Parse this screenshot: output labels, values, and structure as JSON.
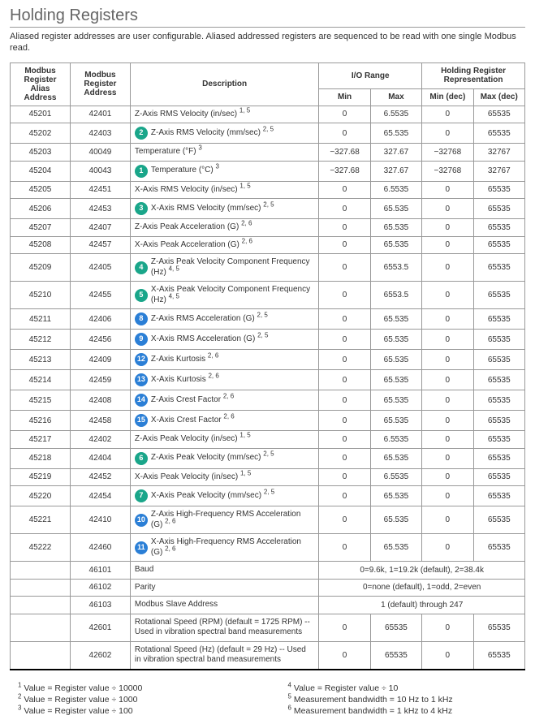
{
  "title": "Holding Registers",
  "intro": "Aliased register addresses are user configurable. Aliased addressed registers are sequenced to be read with one single Modbus read.",
  "headers": {
    "alias": "Modbus Register Alias Address",
    "addr": "Modbus Register Address",
    "desc": "Description",
    "io": "I/O Range",
    "rep": "Holding Register Representation",
    "min": "Min",
    "max": "Max",
    "mindec": "Min (dec)",
    "maxdec": "Max (dec)"
  },
  "rows": [
    {
      "alias": "45201",
      "addr": "42401",
      "badge": null,
      "badgeColor": null,
      "desc": "Z-Axis RMS Velocity (in/sec)",
      "sup": "1, 5",
      "min": "0",
      "max": "6.5535",
      "mind": "0",
      "maxd": "65535",
      "heavy": false
    },
    {
      "alias": "45202",
      "addr": "42403",
      "badge": "2",
      "badgeColor": "teal",
      "desc": "Z-Axis RMS Velocity (mm/sec)",
      "sup": "2, 5",
      "min": "0",
      "max": "65.535",
      "mind": "0",
      "maxd": "65535",
      "heavy": false
    },
    {
      "alias": "45203",
      "addr": "40049",
      "badge": null,
      "badgeColor": null,
      "desc": "Temperature (°F)",
      "sup": "3",
      "min": "−327.68",
      "max": "327.67",
      "mind": "−32768",
      "maxd": "32767",
      "heavy": false
    },
    {
      "alias": "45204",
      "addr": "40043",
      "badge": "1",
      "badgeColor": "teal",
      "desc": "Temperature (°C)",
      "sup": "3",
      "min": "−327.68",
      "max": "327.67",
      "mind": "−32768",
      "maxd": "32767",
      "heavy": false
    },
    {
      "alias": "45205",
      "addr": "42451",
      "badge": null,
      "badgeColor": null,
      "desc": "X-Axis RMS Velocity (in/sec)",
      "sup": "1, 5",
      "min": "0",
      "max": "6.5535",
      "mind": "0",
      "maxd": "65535",
      "heavy": false
    },
    {
      "alias": "45206",
      "addr": "42453",
      "badge": "3",
      "badgeColor": "teal",
      "desc": "X-Axis RMS Velocity (mm/sec)",
      "sup": "2, 5",
      "min": "0",
      "max": "65.535",
      "mind": "0",
      "maxd": "65535",
      "heavy": false
    },
    {
      "alias": "45207",
      "addr": "42407",
      "badge": null,
      "badgeColor": null,
      "desc": "Z-Axis Peak Acceleration (G)",
      "sup": "2, 6",
      "min": "0",
      "max": "65.535",
      "mind": "0",
      "maxd": "65535",
      "heavy": false
    },
    {
      "alias": "45208",
      "addr": "42457",
      "badge": null,
      "badgeColor": null,
      "desc": "X-Axis Peak Acceleration (G)",
      "sup": "2, 6",
      "min": "0",
      "max": "65.535",
      "mind": "0",
      "maxd": "65535",
      "heavy": false
    },
    {
      "alias": "45209",
      "addr": "42405",
      "badge": "4",
      "badgeColor": "teal",
      "desc": "Z-Axis Peak Velocity Component Frequency (Hz)",
      "sup": "4, 5",
      "min": "0",
      "max": "6553.5",
      "mind": "0",
      "maxd": "65535",
      "heavy": true
    },
    {
      "alias": "45210",
      "addr": "42455",
      "badge": "5",
      "badgeColor": "teal",
      "desc": "X-Axis Peak Velocity Component Frequency (Hz)",
      "sup": "4, 5",
      "min": "0",
      "max": "6553.5",
      "mind": "0",
      "maxd": "65535",
      "heavy": false
    },
    {
      "alias": "45211",
      "addr": "42406",
      "badge": "8",
      "badgeColor": "blue",
      "desc": "Z-Axis RMS Acceleration (G)",
      "sup": "2, 5",
      "min": "0",
      "max": "65.535",
      "mind": "0",
      "maxd": "65535",
      "heavy": false
    },
    {
      "alias": "45212",
      "addr": "42456",
      "badge": "9",
      "badgeColor": "blue",
      "desc": "X-Axis RMS Acceleration (G)",
      "sup": "2, 5",
      "min": "0",
      "max": "65.535",
      "mind": "0",
      "maxd": "65535",
      "heavy": false
    },
    {
      "alias": "45213",
      "addr": "42409",
      "badge": "12",
      "badgeColor": "blue",
      "desc": "Z-Axis Kurtosis",
      "sup": "2, 6",
      "min": "0",
      "max": "65.535",
      "mind": "0",
      "maxd": "65535",
      "heavy": false
    },
    {
      "alias": "45214",
      "addr": "42459",
      "badge": "13",
      "badgeColor": "blue",
      "desc": "X-Axis Kurtosis",
      "sup": "2, 6",
      "min": "0",
      "max": "65.535",
      "mind": "0",
      "maxd": "65535",
      "heavy": false
    },
    {
      "alias": "45215",
      "addr": "42408",
      "badge": "14",
      "badgeColor": "blue",
      "desc": "Z-Axis Crest Factor",
      "sup": "2, 6",
      "min": "0",
      "max": "65.535",
      "mind": "0",
      "maxd": "65535",
      "heavy": false
    },
    {
      "alias": "45216",
      "addr": "42458",
      "badge": "15",
      "badgeColor": "blue",
      "desc": "X-Axis Crest Factor",
      "sup": "2, 6",
      "min": "0",
      "max": "65.535",
      "mind": "0",
      "maxd": "65535",
      "heavy": false
    },
    {
      "alias": "45217",
      "addr": "42402",
      "badge": null,
      "badgeColor": null,
      "desc": "Z-Axis Peak Velocity (in/sec)",
      "sup": "1, 5",
      "min": "0",
      "max": "6.5535",
      "mind": "0",
      "maxd": "65535",
      "heavy": false
    },
    {
      "alias": "45218",
      "addr": "42404",
      "badge": "6",
      "badgeColor": "teal",
      "desc": "Z-Axis Peak Velocity (mm/sec)",
      "sup": "2, 5",
      "min": "0",
      "max": "65.535",
      "mind": "0",
      "maxd": "65535",
      "heavy": false
    },
    {
      "alias": "45219",
      "addr": "42452",
      "badge": null,
      "badgeColor": null,
      "desc": "X-Axis Peak Velocity (in/sec)",
      "sup": "1, 5",
      "min": "0",
      "max": "6.5535",
      "mind": "0",
      "maxd": "65535",
      "heavy": false
    },
    {
      "alias": "45220",
      "addr": "42454",
      "badge": "7",
      "badgeColor": "teal",
      "desc": "X-Axis Peak Velocity (mm/sec)",
      "sup": "2, 5",
      "min": "0",
      "max": "65.535",
      "mind": "0",
      "maxd": "65535",
      "heavy": false
    },
    {
      "alias": "45221",
      "addr": "42410",
      "badge": "10",
      "badgeColor": "blue",
      "desc": "Z-Axis High-Frequency RMS Acceleration (G)",
      "sup": "2, 6",
      "min": "0",
      "max": "65.535",
      "mind": "0",
      "maxd": "65535",
      "heavy": false
    },
    {
      "alias": "45222",
      "addr": "42460",
      "badge": "11",
      "badgeColor": "blue",
      "desc": "X-Axis High-Frequency RMS Acceleration (G)",
      "sup": "2, 6",
      "min": "0",
      "max": "65.535",
      "mind": "0",
      "maxd": "65535",
      "heavy": false
    }
  ],
  "spanRows": [
    {
      "alias": "",
      "addr": "46101",
      "desc": "Baud",
      "span": "0=9.6k, 1=19.2k (default), 2=38.4k",
      "heavy": true
    },
    {
      "alias": "",
      "addr": "46102",
      "desc": "Parity",
      "span": "0=none (default), 1=odd, 2=even",
      "heavy": false
    },
    {
      "alias": "",
      "addr": "46103",
      "desc": "Modbus Slave Address",
      "span": "1 (default) through 247",
      "heavy": false
    }
  ],
  "tailRows": [
    {
      "alias": "",
      "addr": "42601",
      "desc": "Rotational Speed (RPM) (default = 1725 RPM) -- Used in vibration spectral band measurements",
      "min": "0",
      "max": "65535",
      "mind": "0",
      "maxd": "65535",
      "heavy": true
    },
    {
      "alias": "",
      "addr": "42602",
      "desc": "Rotational Speed (Hz) (default = 29 Hz) -- Used in vibration spectral band measurements",
      "min": "0",
      "max": "65535",
      "mind": "0",
      "maxd": "65535",
      "heavy": false
    }
  ],
  "footnotes": {
    "left": [
      {
        "sup": "1",
        "text": "Value = Register value ÷ 10000"
      },
      {
        "sup": "2",
        "text": "Value = Register value ÷ 1000"
      },
      {
        "sup": "3",
        "text": "Value = Register value ÷ 100"
      }
    ],
    "right": [
      {
        "sup": "4",
        "text": "Value = Register value ÷ 10"
      },
      {
        "sup": "5",
        "text": "Measurement bandwidth = 10 Hz to 1 kHz"
      },
      {
        "sup": "6",
        "text": "Measurement bandwidth = 1 kHz to 4 kHz"
      }
    ]
  },
  "colors": {
    "teal": "#1aa68a",
    "blue": "#2b7fd6",
    "border": "#999999",
    "sidebar": "#3a7a3a"
  }
}
